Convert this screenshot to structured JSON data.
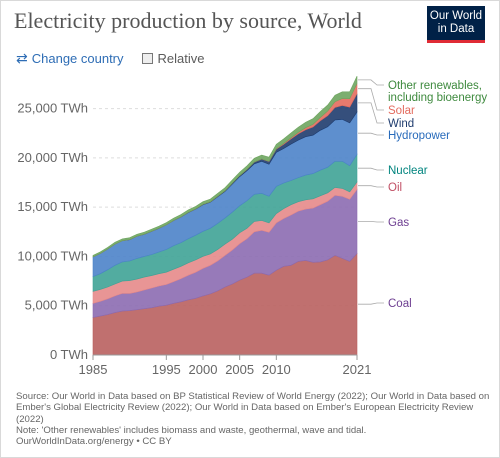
{
  "header": {
    "title": "Electricity production by source, World",
    "logo_line1": "Our World",
    "logo_line2": "in Data"
  },
  "controls": {
    "change_country_label": "Change country",
    "relative_label": "Relative"
  },
  "footer": {
    "source_text": "Source: Our World in Data based on BP Statistical Review of World Energy (2022); Our World in Data based on Ember's Global Electricity Review (2022); Our World in Data based on Ember's European Electricity Review (2022)",
    "note_text": "Note: 'Other renewables' includes biomass and waste, geothermal, wave and tidal.",
    "url_text": "OurWorldInData.org/energy • CC BY"
  },
  "chart_data": {
    "type": "area",
    "stacked": true,
    "x": [
      1985,
      1986,
      1987,
      1988,
      1989,
      1990,
      1991,
      1992,
      1993,
      1994,
      1995,
      1996,
      1997,
      1998,
      1999,
      2000,
      2001,
      2002,
      2003,
      2004,
      2005,
      2006,
      2007,
      2008,
      2009,
      2010,
      2011,
      2012,
      2013,
      2014,
      2015,
      2016,
      2017,
      2018,
      2019,
      2020,
      2021
    ],
    "x_ticks": [
      1985,
      1995,
      2000,
      2005,
      2010,
      2021
    ],
    "x_tick_labels": [
      "1985",
      "1995",
      "2000",
      "2005",
      "2010",
      "2021"
    ],
    "y_ticks": [
      0,
      5000,
      10000,
      15000,
      20000,
      25000
    ],
    "y_tick_labels": [
      "0 TWh",
      "5,000 TWh",
      "10,000 TWh",
      "15,000 TWh",
      "20,000 TWh",
      "25,000 TWh"
    ],
    "xlim": [
      1983,
      2021
    ],
    "ylim": [
      0,
      28000
    ],
    "grid": "horizontal dashed",
    "legend": "inline-right",
    "series": [
      {
        "name": "Coal",
        "color": "#b9605f",
        "label_color": "#6d3e91",
        "values": [
          3800,
          3950,
          4100,
          4300,
          4450,
          4500,
          4600,
          4700,
          4800,
          4950,
          5050,
          5250,
          5400,
          5600,
          5750,
          6000,
          6200,
          6500,
          6900,
          7200,
          7600,
          7900,
          8300,
          8300,
          8100,
          8600,
          9000,
          9100,
          9500,
          9600,
          9400,
          9450,
          9650,
          10100,
          9800,
          9500,
          10300
        ]
      },
      {
        "name": "Gas",
        "color": "#8c6bb1",
        "label_color": "#6d3e91",
        "values": [
          1450,
          1500,
          1600,
          1700,
          1800,
          1750,
          1800,
          1900,
          2000,
          2050,
          2100,
          2200,
          2350,
          2500,
          2650,
          2800,
          2900,
          3050,
          3200,
          3450,
          3700,
          3900,
          4200,
          4350,
          4350,
          4800,
          4850,
          5100,
          5100,
          5200,
          5500,
          5800,
          5950,
          6100,
          6300,
          6300,
          6500
        ]
      },
      {
        "name": "Oil",
        "color": "#e58a8a",
        "label_color": "#c15065",
        "values": [
          1200,
          1200,
          1200,
          1200,
          1250,
          1300,
          1300,
          1300,
          1250,
          1250,
          1250,
          1250,
          1250,
          1250,
          1250,
          1200,
          1150,
          1150,
          1150,
          1100,
          1100,
          1050,
          1050,
          1000,
          950,
          950,
          1000,
          1050,
          950,
          950,
          950,
          900,
          850,
          800,
          800,
          750,
          750
        ]
      },
      {
        "name": "Nuclear",
        "color": "#3fa396",
        "label_color": "#00847e",
        "values": [
          1500,
          1600,
          1750,
          1900,
          1950,
          2000,
          2100,
          2100,
          2150,
          2200,
          2300,
          2400,
          2400,
          2450,
          2500,
          2550,
          2600,
          2650,
          2650,
          2750,
          2750,
          2800,
          2750,
          2750,
          2700,
          2750,
          2600,
          2450,
          2450,
          2500,
          2550,
          2600,
          2600,
          2650,
          2750,
          2650,
          2800
        ]
      },
      {
        "name": "Hydropower",
        "color": "#4c83c9",
        "label_color": "#286bbb",
        "values": [
          2000,
          2050,
          2100,
          2150,
          2150,
          2150,
          2250,
          2250,
          2350,
          2400,
          2500,
          2550,
          2600,
          2650,
          2650,
          2700,
          2650,
          2700,
          2700,
          2850,
          2950,
          3050,
          3100,
          3250,
          3250,
          3450,
          3500,
          3700,
          3800,
          3900,
          3900,
          4050,
          4100,
          4200,
          4250,
          4350,
          4300
        ]
      },
      {
        "name": "Wind",
        "color": "#1f3c6e",
        "label_color": "#1f3c6e",
        "values": [
          0,
          0,
          0,
          0,
          0,
          5,
          5,
          5,
          10,
          10,
          10,
          10,
          15,
          20,
          20,
          30,
          40,
          50,
          60,
          80,
          100,
          130,
          170,
          220,
          280,
          340,
          440,
          520,
          640,
          710,
          830,
          960,
          1140,
          1270,
          1420,
          1600,
          1850
        ]
      },
      {
        "name": "Solar",
        "color": "#e36b5e",
        "label_color": "#e36b5e",
        "values": [
          0,
          0,
          0,
          0,
          0,
          0,
          0,
          0,
          0,
          0,
          0,
          0,
          0,
          0,
          0,
          1,
          1,
          2,
          2,
          3,
          4,
          6,
          8,
          12,
          20,
          33,
          64,
          100,
          140,
          200,
          260,
          330,
          450,
          580,
          700,
          850,
          1030
        ]
      },
      {
        "name": "Other renewables, including bioenergy",
        "color": "#6ea55f",
        "label_color": "#3e8a3e",
        "values": [
          150,
          160,
          170,
          180,
          180,
          190,
          190,
          200,
          210,
          210,
          220,
          230,
          240,
          250,
          260,
          270,
          280,
          290,
          310,
          320,
          340,
          360,
          380,
          400,
          420,
          450,
          470,
          500,
          530,
          560,
          580,
          600,
          620,
          650,
          680,
          710,
          760
        ]
      }
    ],
    "legend_labels": [
      {
        "lines": [
          "Other renewables,",
          "including bioenergy"
        ],
        "series": "Other renewables, including bioenergy"
      },
      {
        "lines": [
          "Solar"
        ],
        "series": "Solar"
      },
      {
        "lines": [
          "Wind"
        ],
        "series": "Wind"
      },
      {
        "lines": [
          "Hydropower"
        ],
        "series": "Hydropower"
      },
      {
        "lines": [
          "Nuclear"
        ],
        "series": "Nuclear"
      },
      {
        "lines": [
          "Oil"
        ],
        "series": "Oil"
      },
      {
        "lines": [
          "Gas"
        ],
        "series": "Gas"
      },
      {
        "lines": [
          "Coal"
        ],
        "series": "Coal"
      }
    ]
  }
}
